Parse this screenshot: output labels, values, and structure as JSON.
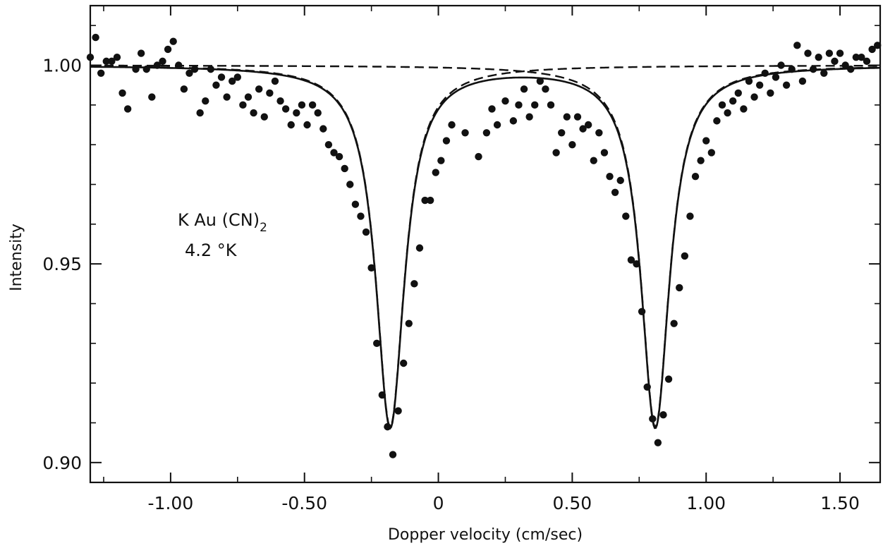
{
  "chart_data": {
    "type": "scatter",
    "title": "",
    "xlabel": "Dopper velocity (cm/sec)",
    "ylabel": "Intensity",
    "xlim": [
      -1.3,
      1.65
    ],
    "ylim": [
      0.895,
      1.015
    ],
    "xticks": [
      -1.0,
      -0.5,
      0.0,
      0.5,
      1.0,
      1.5
    ],
    "xtick_labels": [
      "-1.00",
      "-0.50",
      "0",
      "0.50",
      "1.00",
      "1.50"
    ],
    "yticks": [
      0.9,
      0.95,
      1.0
    ],
    "ytick_labels": [
      "0.90",
      "0.95",
      "1.00"
    ],
    "grid": false,
    "annotation": {
      "compound": "K Au (CN)",
      "subscript": "2",
      "temperature": "4.2 °K"
    },
    "fit": {
      "baseline": 1.0,
      "lines": [
        {
          "center": -0.18,
          "depth": 0.091,
          "hwhm": 0.065
        },
        {
          "center": 0.81,
          "depth": 0.091,
          "hwhm": 0.065
        }
      ]
    },
    "series": [
      {
        "style": "points",
        "points": [
          [
            -1.3,
            1.002
          ],
          [
            -1.28,
            1.007
          ],
          [
            -1.26,
            0.998
          ],
          [
            -1.24,
            1.001
          ],
          [
            -1.22,
            1.001
          ],
          [
            -1.2,
            1.002
          ],
          [
            -1.18,
            0.993
          ],
          [
            -1.16,
            0.989
          ],
          [
            -1.13,
            0.999
          ],
          [
            -1.11,
            1.003
          ],
          [
            -1.09,
            0.999
          ],
          [
            -1.07,
            0.992
          ],
          [
            -1.05,
            1.0
          ],
          [
            -1.03,
            1.001
          ],
          [
            -1.01,
            1.004
          ],
          [
            -0.99,
            1.006
          ],
          [
            -0.97,
            1.0
          ],
          [
            -0.95,
            0.994
          ],
          [
            -0.93,
            0.998
          ],
          [
            -0.91,
            0.999
          ],
          [
            -0.89,
            0.988
          ],
          [
            -0.87,
            0.991
          ],
          [
            -0.85,
            0.999
          ],
          [
            -0.83,
            0.995
          ],
          [
            -0.81,
            0.997
          ],
          [
            -0.79,
            0.992
          ],
          [
            -0.77,
            0.996
          ],
          [
            -0.75,
            0.997
          ],
          [
            -0.73,
            0.99
          ],
          [
            -0.71,
            0.992
          ],
          [
            -0.69,
            0.988
          ],
          [
            -0.67,
            0.994
          ],
          [
            -0.65,
            0.987
          ],
          [
            -0.63,
            0.993
          ],
          [
            -0.61,
            0.996
          ],
          [
            -0.59,
            0.991
          ],
          [
            -0.57,
            0.989
          ],
          [
            -0.55,
            0.985
          ],
          [
            -0.53,
            0.988
          ],
          [
            -0.51,
            0.99
          ],
          [
            -0.49,
            0.985
          ],
          [
            -0.47,
            0.99
          ],
          [
            -0.45,
            0.988
          ],
          [
            -0.43,
            0.984
          ],
          [
            -0.41,
            0.98
          ],
          [
            -0.39,
            0.978
          ],
          [
            -0.37,
            0.977
          ],
          [
            -0.35,
            0.974
          ],
          [
            -0.33,
            0.97
          ],
          [
            -0.31,
            0.965
          ],
          [
            -0.29,
            0.962
          ],
          [
            -0.27,
            0.958
          ],
          [
            -0.25,
            0.949
          ],
          [
            -0.23,
            0.93
          ],
          [
            -0.21,
            0.917
          ],
          [
            -0.19,
            0.909
          ],
          [
            -0.17,
            0.902
          ],
          [
            -0.15,
            0.913
          ],
          [
            -0.13,
            0.925
          ],
          [
            -0.11,
            0.935
          ],
          [
            -0.09,
            0.945
          ],
          [
            -0.07,
            0.954
          ],
          [
            -0.05,
            0.966
          ],
          [
            -0.03,
            0.966
          ],
          [
            -0.01,
            0.973
          ],
          [
            0.01,
            0.976
          ],
          [
            0.03,
            0.981
          ],
          [
            0.05,
            0.985
          ],
          [
            0.1,
            0.983
          ],
          [
            0.15,
            0.977
          ],
          [
            0.18,
            0.983
          ],
          [
            0.2,
            0.989
          ],
          [
            0.22,
            0.985
          ],
          [
            0.25,
            0.991
          ],
          [
            0.28,
            0.986
          ],
          [
            0.3,
            0.99
          ],
          [
            0.32,
            0.994
          ],
          [
            0.34,
            0.987
          ],
          [
            0.36,
            0.99
          ],
          [
            0.38,
            0.996
          ],
          [
            0.4,
            0.994
          ],
          [
            0.42,
            0.99
          ],
          [
            0.44,
            0.978
          ],
          [
            0.46,
            0.983
          ],
          [
            0.48,
            0.987
          ],
          [
            0.5,
            0.98
          ],
          [
            0.52,
            0.987
          ],
          [
            0.54,
            0.984
          ],
          [
            0.56,
            0.985
          ],
          [
            0.58,
            0.976
          ],
          [
            0.6,
            0.983
          ],
          [
            0.62,
            0.978
          ],
          [
            0.64,
            0.972
          ],
          [
            0.66,
            0.968
          ],
          [
            0.68,
            0.971
          ],
          [
            0.7,
            0.962
          ],
          [
            0.72,
            0.951
          ],
          [
            0.74,
            0.95
          ],
          [
            0.76,
            0.938
          ],
          [
            0.78,
            0.919
          ],
          [
            0.8,
            0.911
          ],
          [
            0.82,
            0.905
          ],
          [
            0.84,
            0.912
          ],
          [
            0.86,
            0.921
          ],
          [
            0.88,
            0.935
          ],
          [
            0.9,
            0.944
          ],
          [
            0.92,
            0.952
          ],
          [
            0.94,
            0.962
          ],
          [
            0.96,
            0.972
          ],
          [
            0.98,
            0.976
          ],
          [
            1.0,
            0.981
          ],
          [
            1.02,
            0.978
          ],
          [
            1.04,
            0.986
          ],
          [
            1.06,
            0.99
          ],
          [
            1.08,
            0.988
          ],
          [
            1.1,
            0.991
          ],
          [
            1.12,
            0.993
          ],
          [
            1.14,
            0.989
          ],
          [
            1.16,
            0.996
          ],
          [
            1.18,
            0.992
          ],
          [
            1.2,
            0.995
          ],
          [
            1.22,
            0.998
          ],
          [
            1.24,
            0.993
          ],
          [
            1.26,
            0.997
          ],
          [
            1.28,
            1.0
          ],
          [
            1.3,
            0.995
          ],
          [
            1.32,
            0.999
          ],
          [
            1.34,
            1.005
          ],
          [
            1.36,
            0.996
          ],
          [
            1.38,
            1.003
          ],
          [
            1.4,
            0.999
          ],
          [
            1.42,
            1.002
          ],
          [
            1.44,
            0.998
          ],
          [
            1.46,
            1.003
          ],
          [
            1.48,
            1.001
          ],
          [
            1.5,
            1.003
          ],
          [
            1.52,
            1.0
          ],
          [
            1.54,
            0.999
          ],
          [
            1.56,
            1.002
          ],
          [
            1.58,
            1.002
          ],
          [
            1.6,
            1.001
          ],
          [
            1.62,
            1.004
          ],
          [
            1.64,
            1.005
          ]
        ]
      },
      {
        "style": "solid-line",
        "description_of_fit": "sum of two Lorentzians"
      },
      {
        "style": "dashed-line",
        "description_of_fit": "individual Lorentzian components"
      }
    ]
  }
}
